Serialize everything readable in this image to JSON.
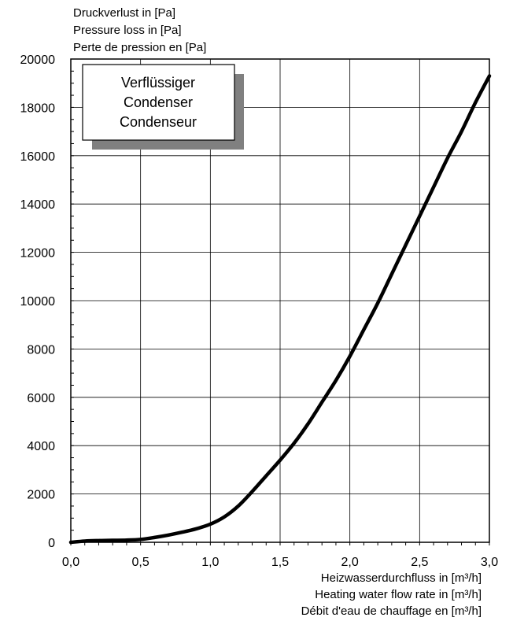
{
  "chart_data": {
    "type": "line",
    "ylabel_lines": [
      "Druckverlust in [Pa]",
      "Pressure loss in [Pa]",
      "Perte de pression en [Pa]"
    ],
    "xlabel_lines": [
      "Heizwasserdurchfluss in [m³/h]",
      "Heating water flow rate in [m³/h]",
      "Débit d'eau de chauffage en [m³/h]"
    ],
    "legend_lines": [
      "Verflüssiger",
      "Condenser",
      "Condenseur"
    ],
    "xlim": [
      0,
      3.0
    ],
    "ylim": [
      0,
      20000
    ],
    "x_ticks": [
      0,
      0.5,
      1.0,
      1.5,
      2.0,
      2.5,
      3.0
    ],
    "x_tick_labels": [
      "0,0",
      "0,5",
      "1,0",
      "1,5",
      "2,0",
      "2,5",
      "3,0"
    ],
    "y_ticks": [
      0,
      2000,
      4000,
      6000,
      8000,
      10000,
      12000,
      14000,
      16000,
      18000,
      20000
    ],
    "y_tick_labels": [
      "0",
      "2000",
      "4000",
      "6000",
      "8000",
      "10000",
      "12000",
      "14000",
      "16000",
      "18000",
      "20000"
    ],
    "grid": true,
    "legend_position": "top-left",
    "series": [
      {
        "color": "#000000",
        "x": [
          0,
          0.1,
          0.2,
          0.3,
          0.4,
          0.5,
          0.6,
          0.7,
          0.8,
          0.9,
          1.0,
          1.1,
          1.2,
          1.3,
          1.4,
          1.5,
          1.6,
          1.7,
          1.8,
          1.9,
          2.0,
          2.1,
          2.2,
          2.3,
          2.4,
          2.5,
          2.6,
          2.7,
          2.8,
          2.9,
          3.0
        ],
        "y": [
          0,
          50,
          70,
          80,
          90,
          120,
          200,
          300,
          420,
          560,
          750,
          1050,
          1500,
          2100,
          2750,
          3400,
          4100,
          4900,
          5800,
          6700,
          7700,
          8800,
          9900,
          11100,
          12300,
          13500,
          14700,
          15900,
          17000,
          18200,
          19300
        ]
      }
    ]
  }
}
